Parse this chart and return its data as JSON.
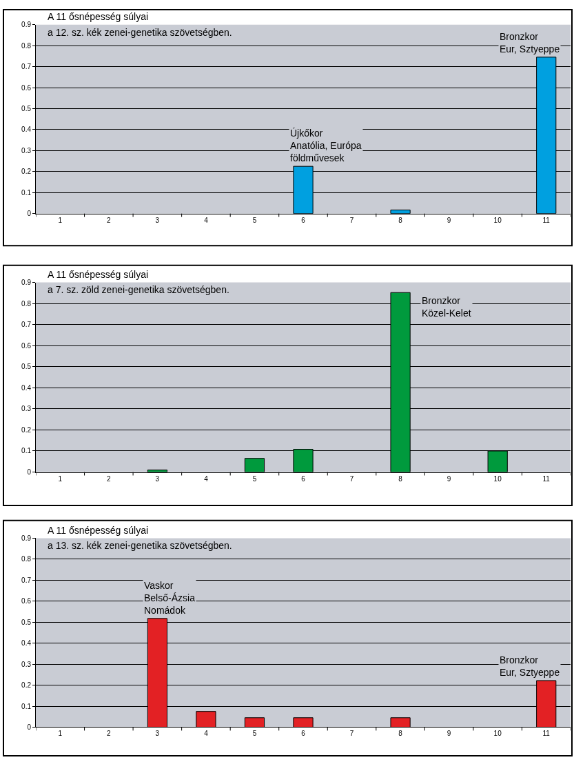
{
  "chart_data": [
    {
      "type": "bar",
      "title": "A 11 ősnépesség súlyai",
      "subtitle": "a 12. sz. kék zenei-genetika szövetségben.",
      "categories": [
        "1",
        "2",
        "3",
        "4",
        "5",
        "6",
        "7",
        "8",
        "9",
        "10",
        "11"
      ],
      "values": [
        0,
        0,
        0,
        0,
        0,
        0.225,
        0,
        0.017,
        0,
        0,
        0.745
      ],
      "color": "#00a0e0",
      "ylim": [
        0,
        0.9
      ],
      "yticks": [
        0,
        0.1,
        0.2,
        0.3,
        0.4,
        0.5,
        0.6,
        0.7,
        0.8,
        0.9
      ],
      "grid": "y",
      "annotations": [
        {
          "text": "Újkőkor\nAnatólia, Európa\nföldművesek",
          "x": "6",
          "y": 0.225
        },
        {
          "text": "Bronzkor\nEur, Sztyeppe",
          "x": "11",
          "y": 0.745
        }
      ]
    },
    {
      "type": "bar",
      "title": "A 11 ősnépesség súlyai",
      "subtitle": "a 7. sz. zöld zenei-genetika szövetségben.",
      "categories": [
        "1",
        "2",
        "3",
        "4",
        "5",
        "6",
        "7",
        "8",
        "9",
        "10",
        "11"
      ],
      "values": [
        0,
        0,
        0.01,
        0,
        0.065,
        0.108,
        0,
        0.852,
        0,
        0.1,
        0
      ],
      "color": "#009a3d",
      "ylim": [
        0,
        0.9
      ],
      "yticks": [
        0,
        0.1,
        0.2,
        0.3,
        0.4,
        0.5,
        0.6,
        0.7,
        0.8,
        0.9
      ],
      "grid": "y",
      "annotations": [
        {
          "text": "Bronzkor\nKözel-Kelet",
          "x": "8",
          "y": 0.852
        }
      ]
    },
    {
      "type": "bar",
      "title": "A 11 ősnépesség súlyai",
      "subtitle": "a 13. sz. kék zenei-genetika szövetségben.",
      "categories": [
        "1",
        "2",
        "3",
        "4",
        "5",
        "6",
        "7",
        "8",
        "9",
        "10",
        "11"
      ],
      "values": [
        0,
        0,
        0.518,
        0.075,
        0.045,
        0.045,
        0,
        0.045,
        0,
        0,
        0.222
      ],
      "color": "#e32124",
      "ylim": [
        0,
        0.9
      ],
      "yticks": [
        0,
        0.1,
        0.2,
        0.3,
        0.4,
        0.5,
        0.6,
        0.7,
        0.8,
        0.9
      ],
      "grid": "y",
      "annotations": [
        {
          "text": "Vaskor\nBelső-Ázsia\nNomádok",
          "x": "3",
          "y": 0.518
        },
        {
          "text": "Bronzkor\nEur, Sztyeppe",
          "x": "11",
          "y": 0.222
        }
      ]
    }
  ]
}
